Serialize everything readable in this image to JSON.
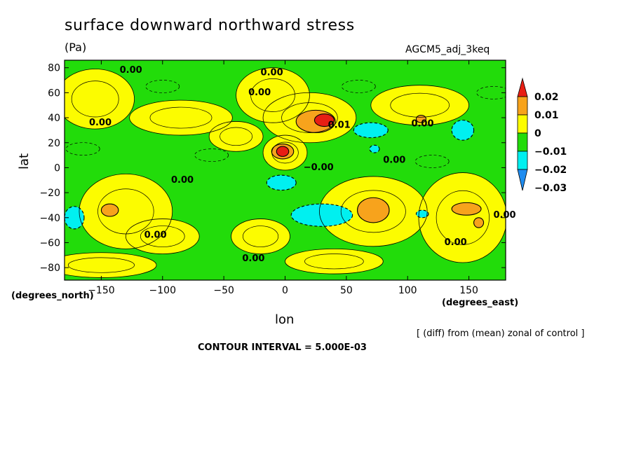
{
  "chart_data": {
    "type": "heatmap",
    "title": "surface downward northward stress",
    "units_label": "(Pa)",
    "run_label": "AGCM5_adj_3keq",
    "xlabel": "lon",
    "ylabel": "lat",
    "x_unit_label": "(degrees_east)",
    "y_unit_label": "(degrees_north)",
    "note": "[ (diff) from (mean) zonal of control ]",
    "contour_interval_label": "CONTOUR INTERVAL = 5.000E-03",
    "xlim": [
      -180,
      180
    ],
    "ylim": [
      -90,
      86
    ],
    "x_ticks": [
      -150,
      -100,
      -50,
      0,
      50,
      100,
      150
    ],
    "x_tick_labels": [
      "−150",
      "−100",
      "−50",
      "0",
      "50",
      "100",
      "150"
    ],
    "y_ticks": [
      80,
      60,
      40,
      20,
      0,
      -20,
      -40,
      -60,
      -80
    ],
    "y_tick_labels": [
      "80",
      "60",
      "40",
      "20",
      "0",
      "−20",
      "−40",
      "−60",
      "−80"
    ],
    "colorbar": {
      "labels": [
        "0.02",
        "0.01",
        "0",
        "−0.01",
        "−0.02",
        "−0.03"
      ],
      "bands": [
        {
          "range": [
            0.02,
            0.03
          ],
          "color": "#e81e14"
        },
        {
          "range": [
            0.01,
            0.02
          ],
          "color": "#f7a31c"
        },
        {
          "range": [
            0.0,
            0.01
          ],
          "color": "#fcfc00"
        },
        {
          "range": [
            -0.01,
            0.0
          ],
          "color": "#22dc0a"
        },
        {
          "range": [
            -0.02,
            -0.01
          ],
          "color": "#00f0f0"
        },
        {
          "range": [
            -0.03,
            -0.02
          ],
          "color": "#1e8cf0"
        }
      ]
    },
    "contour_labels": [
      "0.00",
      "0.00",
      "0.00",
      "0.00",
      "0.01",
      "0.00",
      "−0.00",
      "0.00",
      "0.00",
      "0.00",
      "0.00",
      "0.00",
      "0.00"
    ],
    "regions": [
      {
        "level": 0.005,
        "lon": -155,
        "lat": 55,
        "rlon": 32,
        "rlat": 24
      },
      {
        "level": 0.005,
        "lon": -85,
        "lat": 40,
        "rlon": 42,
        "rlat": 14
      },
      {
        "level": 0.005,
        "lon": -10,
        "lat": 58,
        "rlon": 30,
        "rlat": 22
      },
      {
        "level": 0.005,
        "lon": 20,
        "lat": 40,
        "rlon": 38,
        "rlat": 20
      },
      {
        "level": 0.005,
        "lon": 0,
        "lat": 12,
        "rlon": 18,
        "rlat": 14
      },
      {
        "level": 0.005,
        "lon": 110,
        "lat": 50,
        "rlon": 40,
        "rlat": 16
      },
      {
        "level": 0.005,
        "lon": -130,
        "lat": -35,
        "rlon": 38,
        "rlat": 30
      },
      {
        "level": 0.005,
        "lon": -100,
        "lat": -55,
        "rlon": 30,
        "rlat": 14
      },
      {
        "level": 0.005,
        "lon": 72,
        "lat": -35,
        "rlon": 44,
        "rlat": 28
      },
      {
        "level": 0.005,
        "lon": 145,
        "lat": -40,
        "rlon": 36,
        "rlat": 36
      },
      {
        "level": 0.005,
        "lon": -20,
        "lat": -55,
        "rlon": 24,
        "rlat": 14
      },
      {
        "level": 0.005,
        "lon": -150,
        "lat": -78,
        "rlon": 45,
        "rlat": 10
      },
      {
        "level": 0.005,
        "lon": 40,
        "lat": -75,
        "rlon": 40,
        "rlat": 10
      },
      {
        "level": 0.005,
        "lon": -40,
        "lat": 25,
        "rlon": 22,
        "rlat": 12
      },
      {
        "level": 0.015,
        "lon": 25,
        "lat": 37,
        "rlon": 16,
        "rlat": 9
      },
      {
        "level": 0.015,
        "lon": -2,
        "lat": 13,
        "rlon": 9,
        "rlat": 6
      },
      {
        "level": 0.015,
        "lon": 72,
        "lat": -34,
        "rlon": 13,
        "rlat": 10
      },
      {
        "level": 0.015,
        "lon": -143,
        "lat": -34,
        "rlon": 7,
        "rlat": 5
      },
      {
        "level": 0.015,
        "lon": 148,
        "lat": -33,
        "rlon": 12,
        "rlat": 5
      },
      {
        "level": 0.015,
        "lon": 111,
        "lat": 39,
        "rlon": 4,
        "rlat": 3
      },
      {
        "level": 0.015,
        "lon": 158,
        "lat": -44,
        "rlon": 4,
        "rlat": 4
      },
      {
        "level": 0.025,
        "lon": 32,
        "lat": 38,
        "rlon": 8,
        "rlat": 5
      },
      {
        "level": 0.025,
        "lon": -2,
        "lat": 13,
        "rlon": 5,
        "rlat": 4
      },
      {
        "level": -0.015,
        "lon": 70,
        "lat": 30,
        "rlon": 14,
        "rlat": 6
      },
      {
        "level": -0.015,
        "lon": 145,
        "lat": 30,
        "rlon": 9,
        "rlat": 8
      },
      {
        "level": -0.015,
        "lon": -3,
        "lat": -12,
        "rlon": 12,
        "rlat": 6
      },
      {
        "level": -0.015,
        "lon": 30,
        "lat": -38,
        "rlon": 25,
        "rlat": 9
      },
      {
        "level": -0.015,
        "lon": -172,
        "lat": -40,
        "rlon": 8,
        "rlat": 9
      },
      {
        "level": -0.015,
        "lon": 112,
        "lat": -37,
        "rlon": 5,
        "rlat": 3
      },
      {
        "level": -0.015,
        "lon": 73,
        "lat": 15,
        "rlon": 4,
        "rlat": 3
      }
    ]
  }
}
